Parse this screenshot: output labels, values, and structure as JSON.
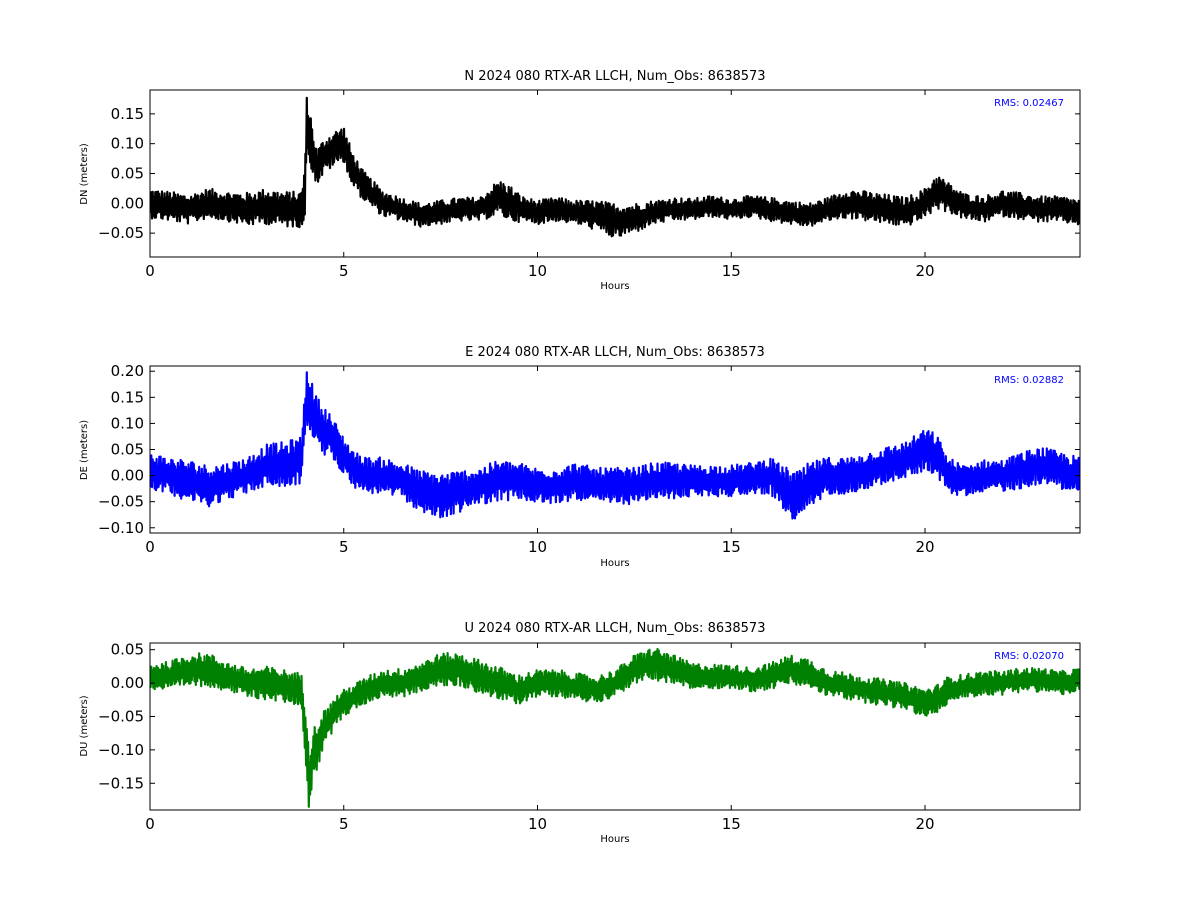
{
  "chart_data": [
    {
      "type": "line",
      "title": "N 2024 080 RTX-AR  LLCH, Num_Obs: 8638573",
      "xlabel": "Hours",
      "ylabel": "DN (meters)",
      "xlim": [
        0,
        24
      ],
      "ylim": [
        -0.09,
        0.19
      ],
      "xticks": [
        0,
        5,
        10,
        15,
        20
      ],
      "yticks": [
        -0.05,
        0.0,
        0.05,
        0.1,
        0.15
      ],
      "ytick_labels": [
        "−0.05",
        "0.00",
        "0.05",
        "0.10",
        "0.15"
      ],
      "rms_label": "RMS:  0.02467",
      "color": "#000000",
      "grid": false,
      "series": [
        {
          "x": [
            0,
            0.5,
            1,
            1.5,
            2,
            2.5,
            3,
            3.5,
            3.9,
            4.0,
            4.05,
            4.1,
            4.2,
            4.3,
            4.5,
            4.7,
            5.0,
            5.2,
            5.5,
            6,
            6.5,
            7,
            7.5,
            8,
            8.5,
            9,
            9.3,
            9.6,
            10,
            10.5,
            11,
            11.5,
            12,
            12.5,
            13,
            13.5,
            14,
            14.5,
            15,
            15.5,
            16,
            16.5,
            17,
            17.5,
            18,
            18.5,
            19,
            19.5,
            20,
            20.3,
            20.6,
            21,
            21.5,
            22,
            22.5,
            23,
            23.5,
            24
          ],
          "center": [
            0.0,
            -0.005,
            -0.01,
            0.0,
            -0.005,
            -0.01,
            -0.005,
            -0.01,
            -0.01,
            0.02,
            0.14,
            0.12,
            0.09,
            0.06,
            0.08,
            0.09,
            0.1,
            0.06,
            0.03,
            0.0,
            -0.01,
            -0.02,
            -0.015,
            -0.01,
            -0.01,
            0.01,
            0.0,
            -0.01,
            -0.015,
            -0.01,
            -0.015,
            -0.02,
            -0.03,
            -0.025,
            -0.015,
            -0.01,
            -0.01,
            -0.005,
            -0.01,
            -0.005,
            -0.01,
            -0.015,
            -0.02,
            -0.01,
            0.0,
            -0.005,
            -0.01,
            -0.015,
            0.0,
            0.02,
            0.01,
            -0.005,
            -0.01,
            0.0,
            -0.005,
            -0.01,
            -0.01,
            -0.015
          ],
          "halfwidth": [
            0.025,
            0.025,
            0.025,
            0.025,
            0.025,
            0.028,
            0.03,
            0.03,
            0.03,
            0.05,
            0.05,
            0.05,
            0.04,
            0.03,
            0.03,
            0.03,
            0.03,
            0.03,
            0.025,
            0.022,
            0.02,
            0.02,
            0.02,
            0.02,
            0.02,
            0.03,
            0.03,
            0.022,
            0.02,
            0.02,
            0.02,
            0.025,
            0.03,
            0.025,
            0.02,
            0.02,
            0.018,
            0.018,
            0.018,
            0.018,
            0.02,
            0.02,
            0.02,
            0.02,
            0.025,
            0.025,
            0.025,
            0.025,
            0.025,
            0.03,
            0.025,
            0.022,
            0.022,
            0.022,
            0.022,
            0.022,
            0.022,
            0.022
          ]
        }
      ]
    },
    {
      "type": "line",
      "title": "E 2024 080 RTX-AR  LLCH, Num_Obs: 8638573",
      "xlabel": "Hours",
      "ylabel": "DE (meters)",
      "xlim": [
        0,
        24
      ],
      "ylim": [
        -0.11,
        0.21
      ],
      "xticks": [
        0,
        5,
        10,
        15,
        20
      ],
      "yticks": [
        -0.1,
        -0.05,
        0.0,
        0.05,
        0.1,
        0.15,
        0.2
      ],
      "ytick_labels": [
        "−0.10",
        "−0.05",
        "0.00",
        "0.05",
        "0.10",
        "0.15",
        "0.20"
      ],
      "rms_label": "RMS:  0.02882",
      "color": "#0000ff",
      "grid": false,
      "series": [
        {
          "x": [
            0,
            0.5,
            1,
            1.5,
            2,
            2.5,
            3,
            3.5,
            3.9,
            4.05,
            4.1,
            4.2,
            4.4,
            4.6,
            4.8,
            5.0,
            5.3,
            5.6,
            6,
            6.5,
            7,
            7.5,
            8,
            8.5,
            9,
            9.5,
            10,
            10.5,
            11,
            11.5,
            12,
            12.5,
            13,
            13.5,
            14,
            14.5,
            15,
            15.5,
            16,
            16.3,
            16.6,
            16.8,
            17,
            17.5,
            18,
            18.5,
            19,
            19.5,
            20,
            20.3,
            20.6,
            21,
            21.5,
            22,
            22.5,
            23,
            23.5,
            24
          ],
          "center": [
            0.01,
            0.0,
            -0.01,
            -0.02,
            -0.01,
            0.0,
            0.02,
            0.02,
            0.03,
            0.15,
            0.15,
            0.12,
            0.09,
            0.08,
            0.06,
            0.04,
            0.01,
            0.0,
            0.0,
            -0.01,
            -0.03,
            -0.04,
            -0.03,
            -0.02,
            -0.01,
            -0.01,
            -0.02,
            -0.02,
            -0.01,
            -0.02,
            -0.02,
            -0.02,
            -0.01,
            -0.01,
            -0.01,
            -0.01,
            -0.01,
            -0.005,
            0.0,
            -0.02,
            -0.04,
            -0.04,
            -0.02,
            0.0,
            0.0,
            0.01,
            0.02,
            0.03,
            0.05,
            0.04,
            0.0,
            -0.01,
            0.0,
            0.0,
            0.01,
            0.02,
            0.01,
            0.0
          ],
          "halfwidth": [
            0.035,
            0.035,
            0.04,
            0.04,
            0.035,
            0.035,
            0.04,
            0.045,
            0.045,
            0.06,
            0.06,
            0.05,
            0.05,
            0.045,
            0.04,
            0.035,
            0.035,
            0.035,
            0.035,
            0.035,
            0.04,
            0.045,
            0.04,
            0.035,
            0.04,
            0.035,
            0.035,
            0.035,
            0.035,
            0.035,
            0.035,
            0.035,
            0.035,
            0.035,
            0.03,
            0.03,
            0.03,
            0.03,
            0.035,
            0.04,
            0.05,
            0.05,
            0.045,
            0.035,
            0.035,
            0.035,
            0.035,
            0.035,
            0.04,
            0.04,
            0.035,
            0.03,
            0.03,
            0.03,
            0.035,
            0.035,
            0.035,
            0.035
          ]
        }
      ]
    },
    {
      "type": "line",
      "title": "U 2024 080 RTX-AR  LLCH, Num_Obs: 8638573",
      "xlabel": "Hours",
      "ylabel": "DU (meters)",
      "xlim": [
        0,
        24
      ],
      "ylim": [
        -0.19,
        0.06
      ],
      "xticks": [
        0,
        5,
        10,
        15,
        20
      ],
      "yticks": [
        -0.15,
        -0.1,
        -0.05,
        0.0,
        0.05
      ],
      "ytick_labels": [
        "−0.15",
        "−0.10",
        "−0.05",
        "0.00",
        "0.05"
      ],
      "rms_label": "RMS:  0.02070",
      "color": "#008000",
      "grid": false,
      "series": [
        {
          "x": [
            0,
            0.5,
            1,
            1.5,
            2,
            2.5,
            3,
            3.5,
            3.9,
            4.05,
            4.1,
            4.2,
            4.4,
            4.6,
            4.8,
            5.0,
            5.3,
            5.6,
            6,
            6.5,
            7,
            7.5,
            8,
            8.5,
            9,
            9.5,
            10,
            10.5,
            11,
            11.5,
            12,
            12.5,
            13,
            13.5,
            14,
            14.5,
            15,
            15.5,
            16,
            16.5,
            17,
            17.5,
            18,
            18.5,
            19,
            19.5,
            20,
            20.3,
            20.6,
            21,
            21.5,
            22,
            22.5,
            23,
            23.5,
            24
          ],
          "center": [
            0.01,
            0.01,
            0.02,
            0.02,
            0.01,
            0.0,
            0.0,
            -0.005,
            -0.01,
            -0.09,
            -0.14,
            -0.11,
            -0.08,
            -0.06,
            -0.04,
            -0.03,
            -0.02,
            -0.01,
            0.0,
            0.0,
            0.01,
            0.02,
            0.02,
            0.01,
            0.0,
            -0.01,
            0.0,
            0.0,
            -0.005,
            -0.01,
            0.0,
            0.02,
            0.03,
            0.02,
            0.01,
            0.01,
            0.01,
            0.005,
            0.01,
            0.02,
            0.015,
            0.0,
            -0.005,
            -0.01,
            -0.015,
            -0.02,
            -0.03,
            -0.025,
            -0.01,
            -0.005,
            0.0,
            0.0,
            0.005,
            0.005,
            0.0,
            0.005
          ],
          "halfwidth": [
            0.02,
            0.022,
            0.025,
            0.025,
            0.022,
            0.022,
            0.025,
            0.025,
            0.025,
            0.05,
            0.05,
            0.04,
            0.035,
            0.025,
            0.022,
            0.02,
            0.02,
            0.02,
            0.02,
            0.022,
            0.022,
            0.025,
            0.025,
            0.025,
            0.025,
            0.022,
            0.02,
            0.02,
            0.02,
            0.02,
            0.02,
            0.022,
            0.025,
            0.022,
            0.02,
            0.018,
            0.018,
            0.018,
            0.02,
            0.022,
            0.022,
            0.02,
            0.02,
            0.02,
            0.02,
            0.02,
            0.022,
            0.022,
            0.02,
            0.018,
            0.018,
            0.018,
            0.018,
            0.018,
            0.018,
            0.018
          ]
        }
      ]
    }
  ]
}
